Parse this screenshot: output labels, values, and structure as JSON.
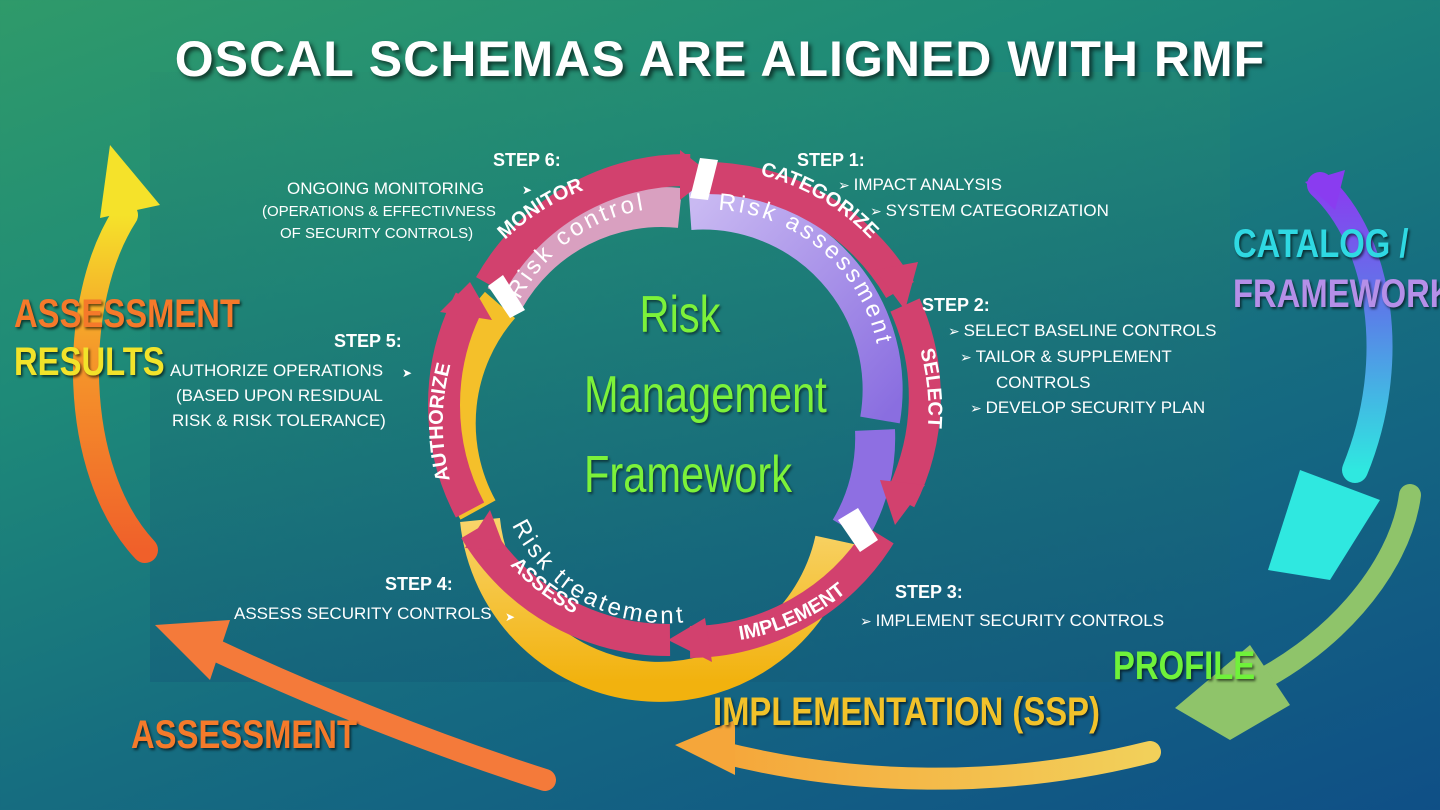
{
  "title": "OSCAL SCHEMAS ARE ALIGNED WITH RMF",
  "center": {
    "line1": "Risk",
    "line2": "Management",
    "line3": "Framework"
  },
  "ring": {
    "arc_labels": {
      "assessment": "Risk assessment",
      "control": "Risk control",
      "treatment": "Risk treatement"
    },
    "steps": {
      "categorize": "CATEGORIZE",
      "select": "SELECT",
      "implement": "IMPLEMENT",
      "assess": "ASSESS",
      "authorize": "AUTHORIZE",
      "monitor": "MONITOR"
    }
  },
  "step1": {
    "heading": "STEP 1:",
    "items": [
      "IMPACT ANALYSIS",
      "SYSTEM CATEGORIZATION"
    ]
  },
  "step2": {
    "heading": "STEP 2:",
    "items": [
      "SELECT BASELINE CONTROLS",
      "TAILOR & SUPPLEMENT",
      "CONTROLS",
      "DEVELOP SECURITY PLAN"
    ]
  },
  "step3": {
    "heading": "STEP 3:",
    "items": [
      "IMPLEMENT SECURITY CONTROLS"
    ]
  },
  "step4": {
    "heading": "STEP 4:",
    "items": [
      "ASSESS SECURITY CONTROLS"
    ]
  },
  "step5": {
    "heading": "STEP 5:",
    "items": [
      "AUTHORIZE OPERATIONS",
      "(BASED UPON RESIDUAL",
      "RISK & RISK TOLERANCE)"
    ]
  },
  "step6": {
    "heading": "STEP 6:",
    "items": [
      "ONGOING MONITORING",
      "(OPERATIONS & EFFECTIVNESS",
      "OF SECURITY CONTROLS)"
    ]
  },
  "oscal": {
    "catalog": "CATALOG /",
    "framework": "FRAMEWORK",
    "profile": "PROFILE",
    "implementation": "IMPLEMENTATION (SSP)",
    "assessment": "ASSESSMENT",
    "results1": "ASSESSMENT",
    "results2": "RESULTS"
  },
  "colors": {
    "ring_pink": "#d2416e",
    "ring_yellow": "#f6c21a",
    "ring_lavender": "#a99be6",
    "center_text": "#7cf23a",
    "catalog_cyan": "#2fd9e3",
    "framework_purple": "#b58fe8",
    "profile_green": "#6ff23a",
    "implementation_yellow": "#f2c22a",
    "assessment_orange": "#f57a2a",
    "results_orange": "#f5792a",
    "results_yellow": "#f2e32a"
  }
}
